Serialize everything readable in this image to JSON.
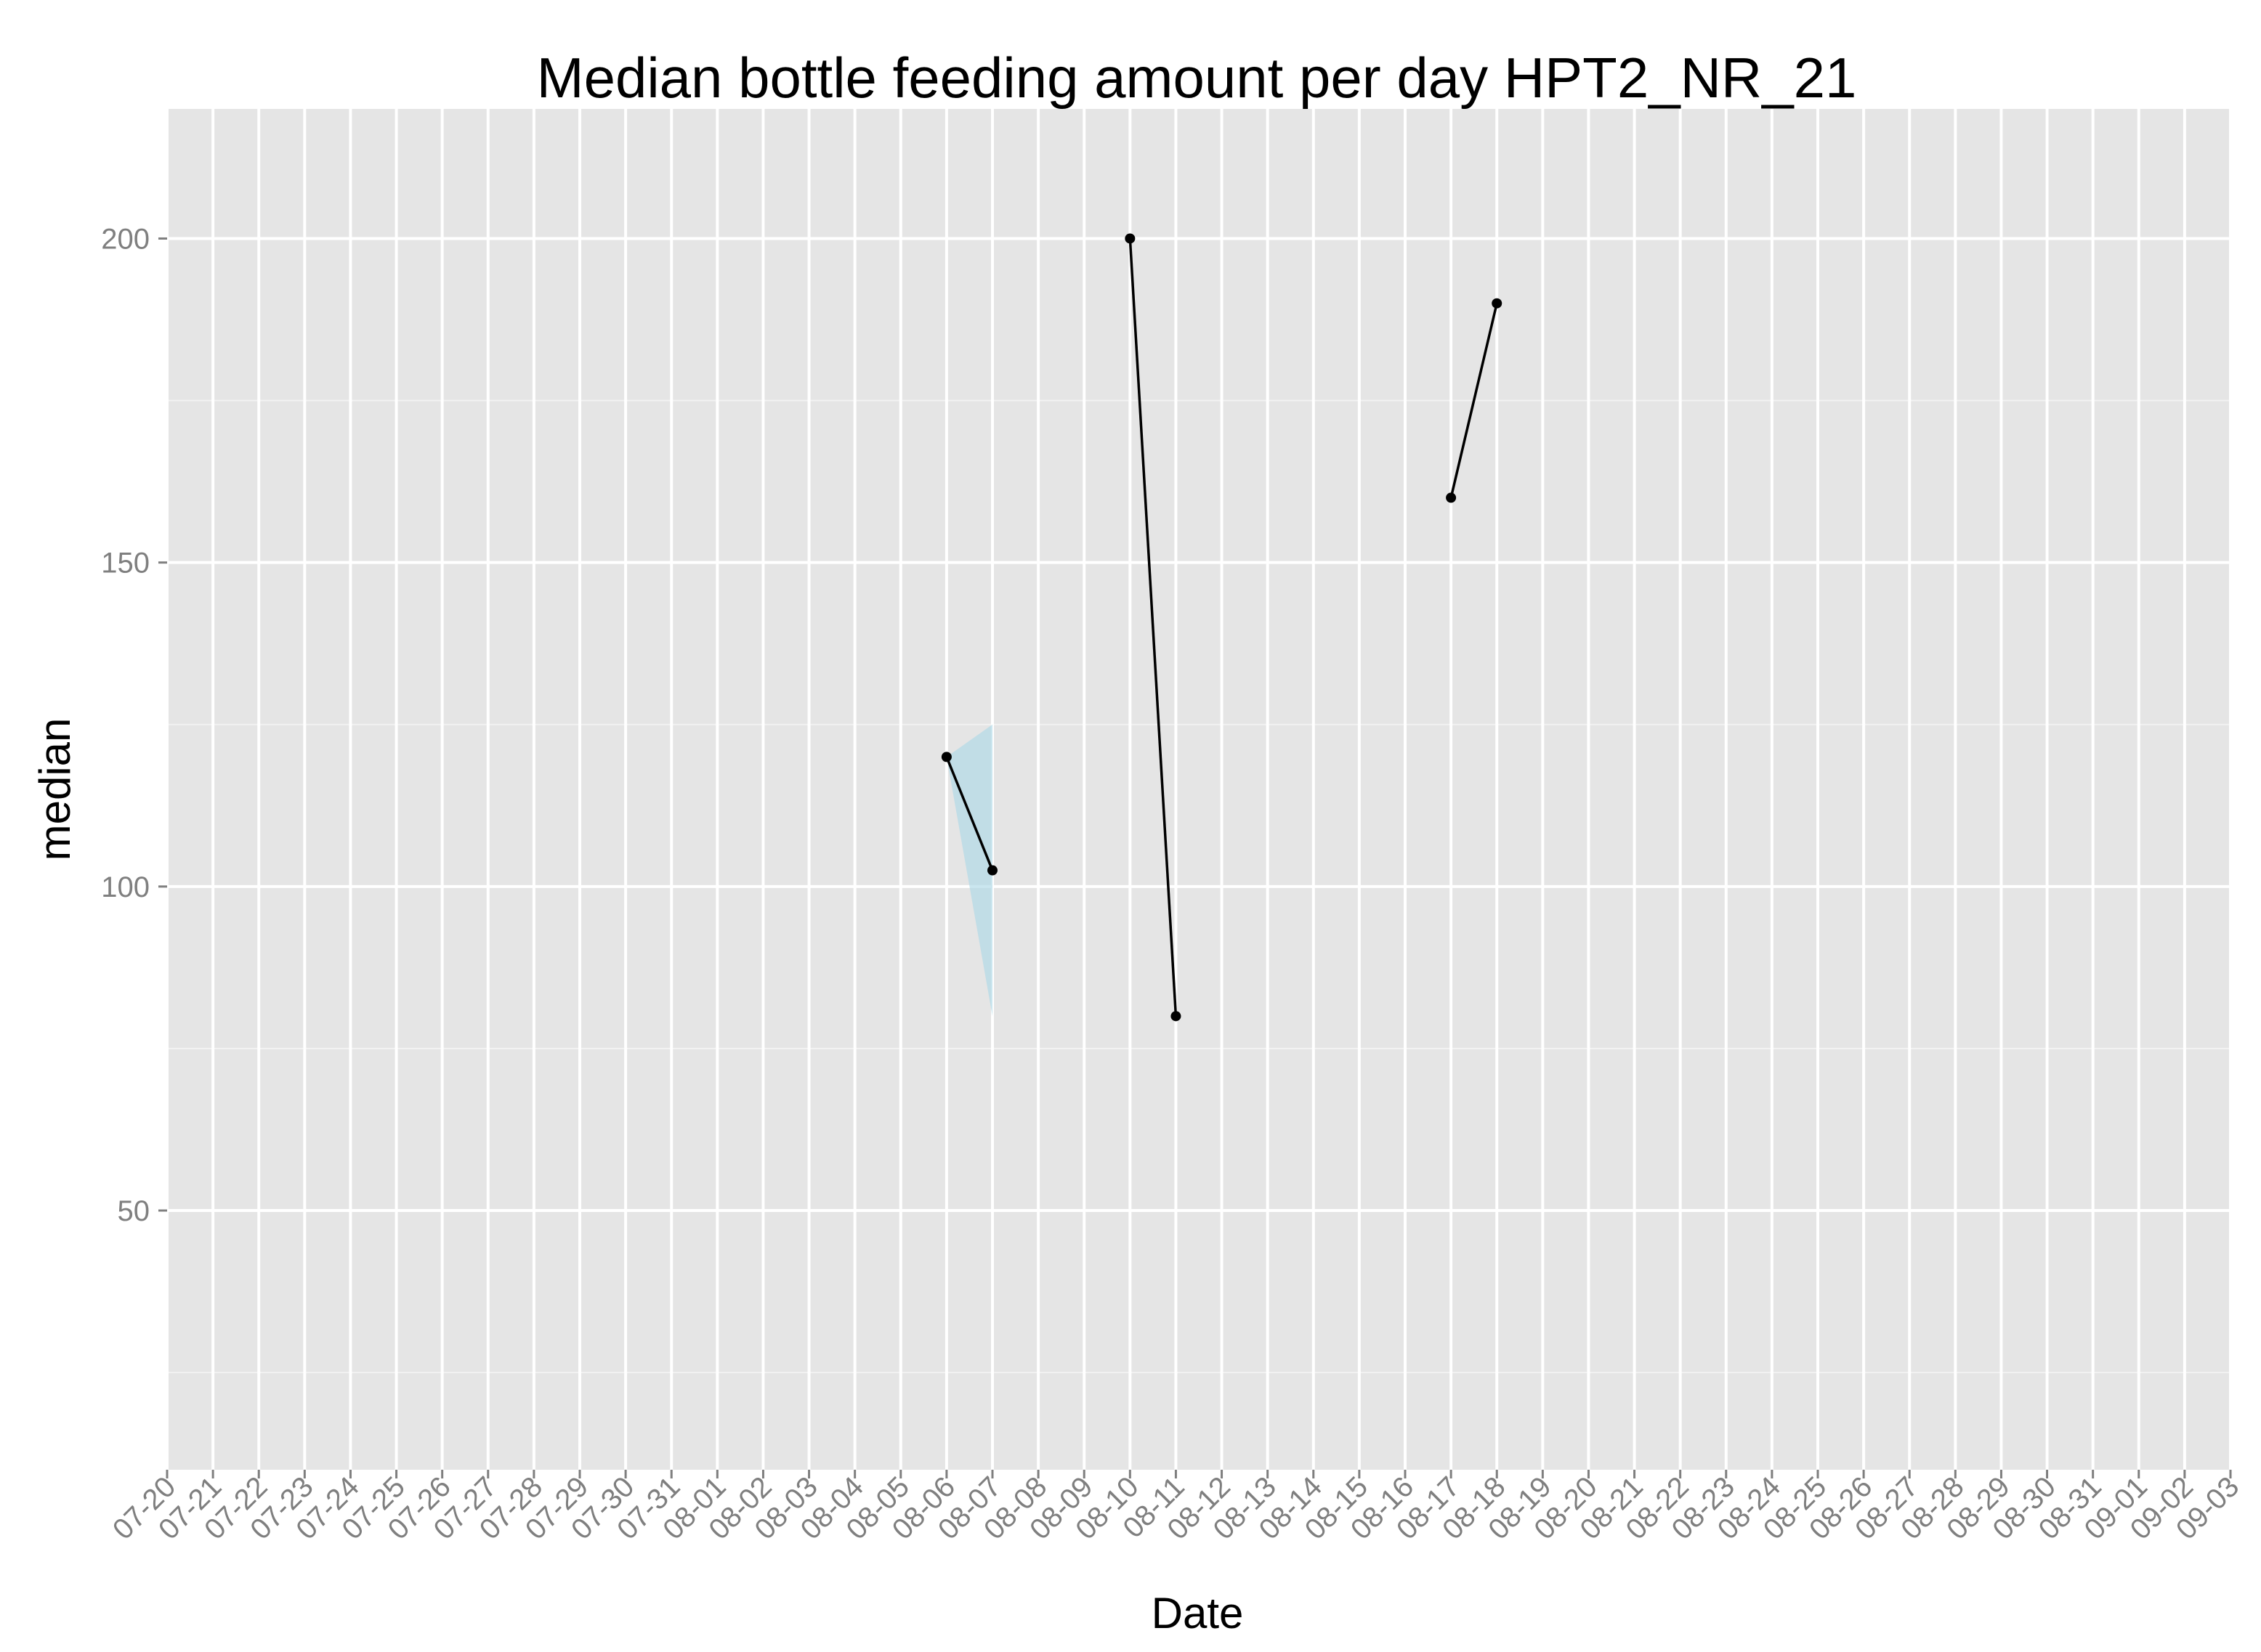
{
  "chart_data": {
    "type": "line",
    "title": "Median bottle feeding amount per day HPT2_NR_21",
    "xlabel": "Date",
    "ylabel": "median",
    "x_ticks": [
      "07-20",
      "07-21",
      "07-22",
      "07-23",
      "07-24",
      "07-25",
      "07-26",
      "07-27",
      "07-28",
      "07-29",
      "07-30",
      "07-31",
      "08-01",
      "08-02",
      "08-03",
      "08-04",
      "08-05",
      "08-06",
      "08-07",
      "08-08",
      "08-09",
      "08-10",
      "08-11",
      "08-12",
      "08-13",
      "08-14",
      "08-15",
      "08-16",
      "08-17",
      "08-18",
      "08-19",
      "08-20",
      "08-21",
      "08-22",
      "08-23",
      "08-24",
      "08-25",
      "08-26",
      "08-27",
      "08-28",
      "08-29",
      "08-30",
      "08-31",
      "09-01",
      "09-02",
      "09-03"
    ],
    "xlim": [
      "07-20",
      "09-03"
    ],
    "y_ticks": [
      50,
      100,
      150,
      200
    ],
    "ylim": [
      10,
      220
    ],
    "grid": true,
    "background": "#e5e5e5",
    "series": [
      {
        "points": [
          {
            "x": "08-06",
            "y": 120
          },
          {
            "x": "08-07",
            "y": 102.5
          }
        ]
      },
      {
        "points": [
          {
            "x": "08-10",
            "y": 200
          },
          {
            "x": "08-11",
            "y": 80
          }
        ]
      },
      {
        "points": [
          {
            "x": "08-17",
            "y": 160
          },
          {
            "x": "08-18",
            "y": 190
          }
        ]
      }
    ],
    "ribbon": {
      "color": "#add8e6",
      "points": [
        {
          "x": "08-06",
          "ymin": 120,
          "ymax": 120
        },
        {
          "x": "08-07",
          "ymin": 80,
          "ymax": 125
        }
      ]
    },
    "line_color": "#000000"
  }
}
